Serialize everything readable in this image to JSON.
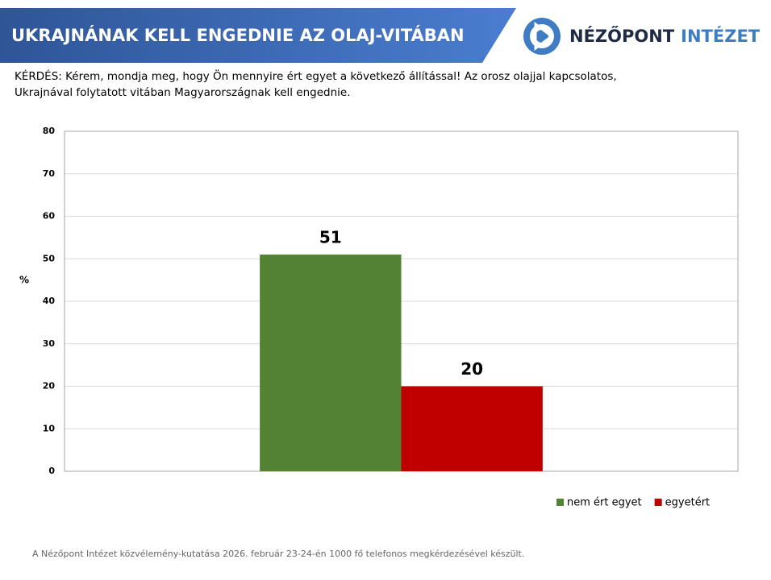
{
  "header": {
    "title": "UKRAJNÁNAK KELL ENGEDNIE AZ OLAJ-VITÁBAN"
  },
  "logo": {
    "name": "NÉZŐPONT",
    "name_accent": "INTÉZET"
  },
  "question": [
    "KÉRDÉS: Kérem, mondja meg, hogy Ön mennyire ért egyet a következő állítással! Az orosz olajjal kapcsolatos,",
    "Ukrajnával folytatott vitában Magyarországnak kell engednie."
  ],
  "chart_data": {
    "type": "bar",
    "ylabel": "%",
    "categories": [
      null
    ],
    "series": [
      {
        "name": "nem ért egyet",
        "color": "#548235",
        "values": [
          51
        ]
      },
      {
        "name": "egyetért",
        "color": "#c00000",
        "values": [
          20
        ]
      }
    ],
    "ylim": [
      0,
      80
    ],
    "yticks": [
      0,
      10,
      20,
      30,
      40,
      50,
      60,
      70,
      80
    ],
    "grid": true,
    "legend": "bottom-right"
  },
  "footer": "A Nézőpont Intézet közvélemény-kutatása 2026. február 23-24-én 1000 fő telefonos megkérdezésével készült."
}
